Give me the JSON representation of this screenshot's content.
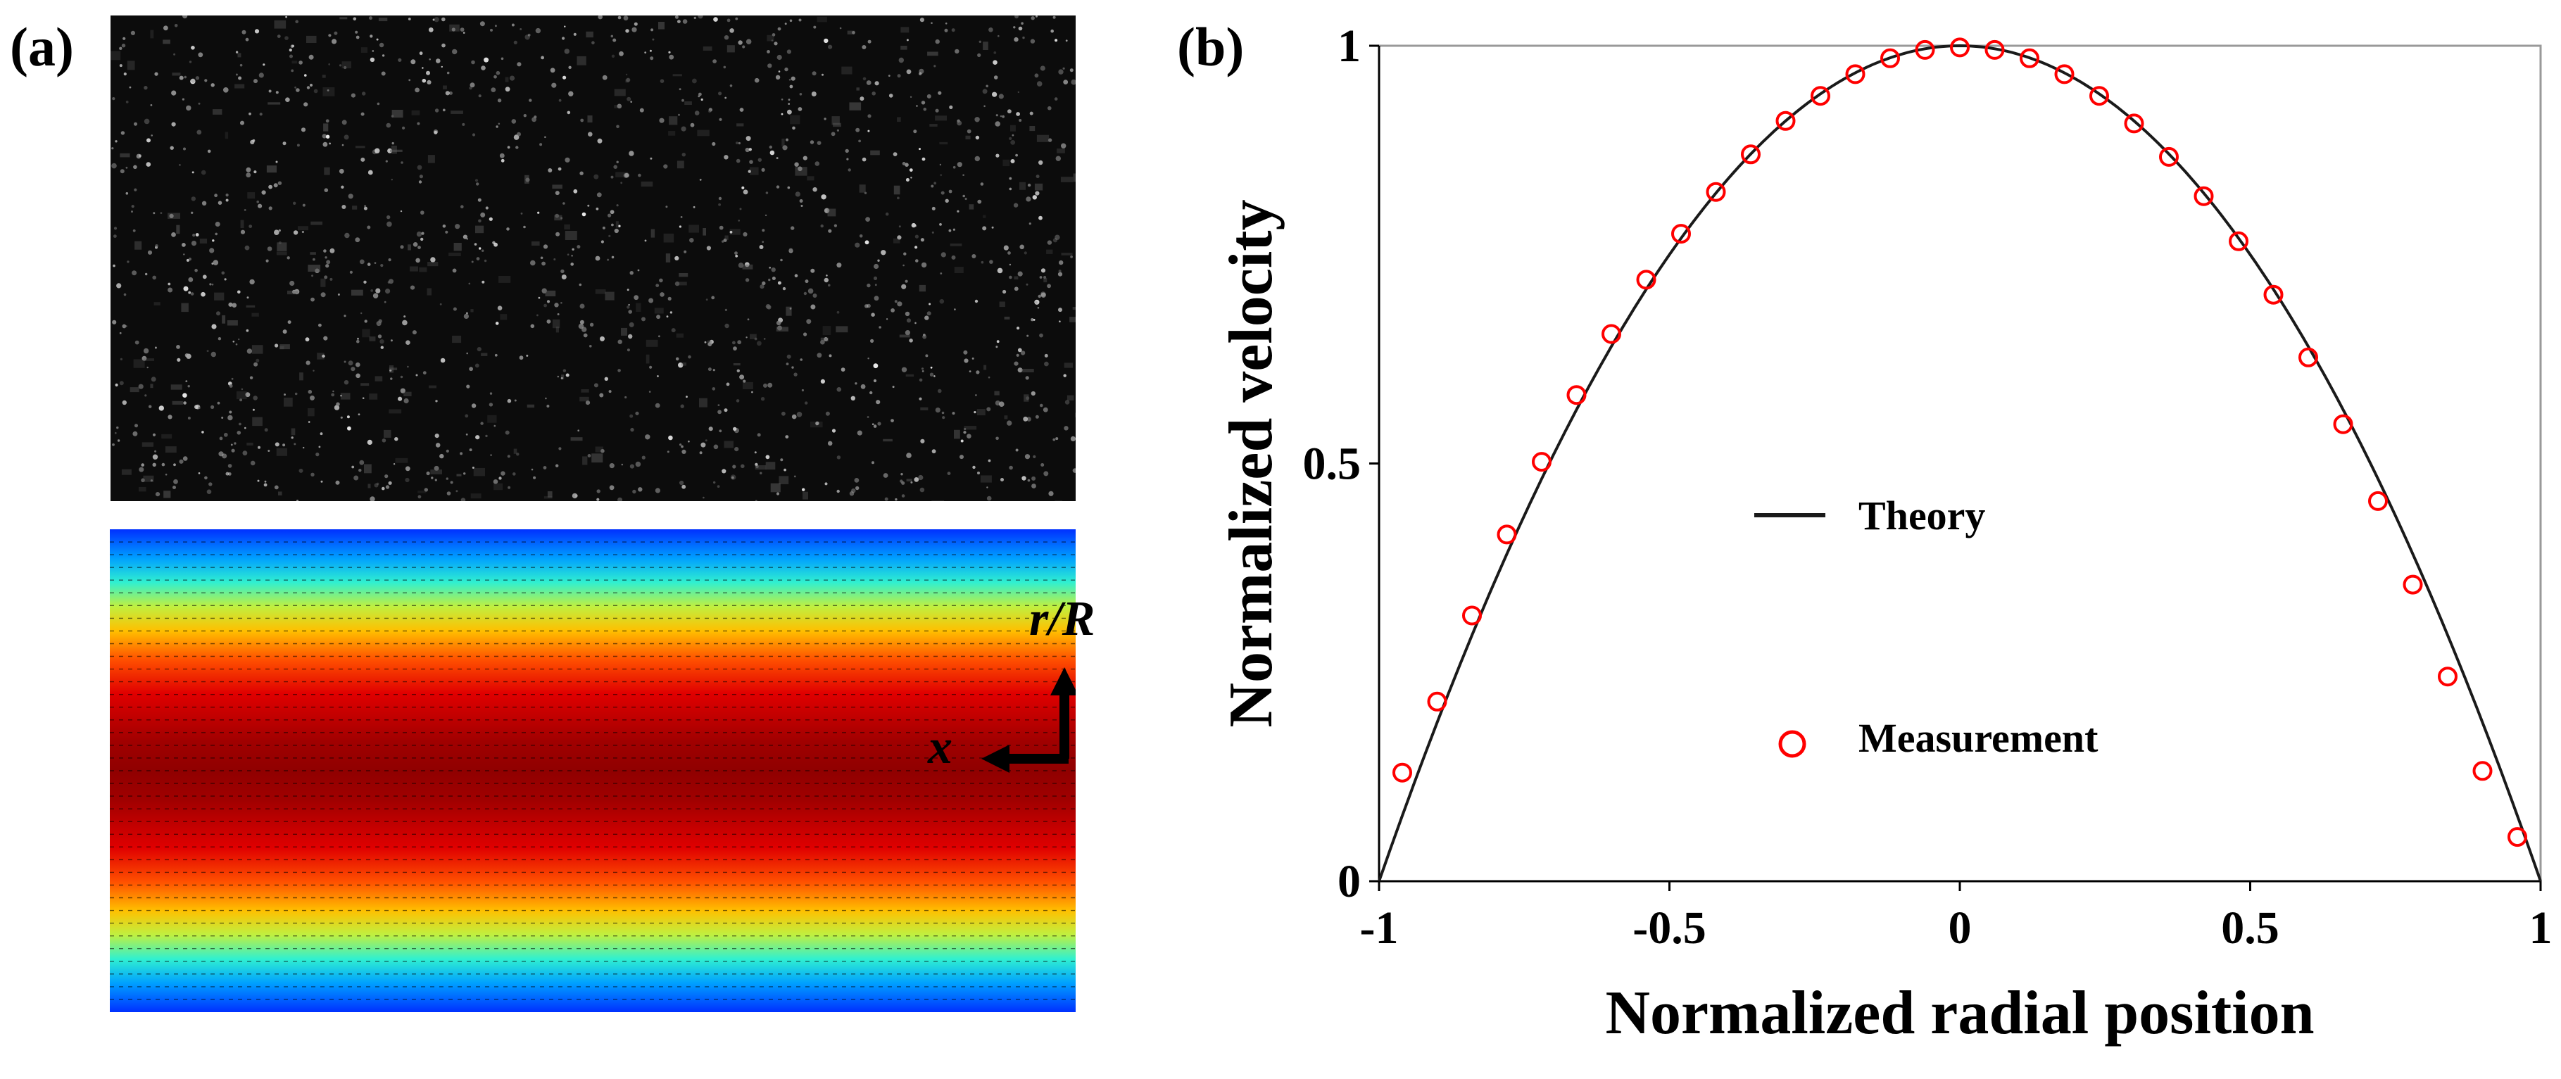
{
  "panel_labels": {
    "a": "(a)",
    "b": "(b)"
  },
  "velocity_field": {
    "coordinate_labels": {
      "radial": "r/R",
      "axial": "x"
    },
    "colormap": [
      "#00008f",
      "#0000ff",
      "#00a0ff",
      "#00ffff",
      "#80ff80",
      "#ffff00",
      "#ff8000",
      "#ff0000",
      "#8f0000"
    ]
  },
  "colors": {
    "theory_line": "#1a1a1a",
    "measurement_marker": "#ff0000",
    "axis": "#000000",
    "frame": "#999999"
  },
  "chart_data": {
    "type": "line",
    "xlabel": "Normalized radial position",
    "ylabel": "Normalized velocity",
    "xlim": [
      -1,
      1
    ],
    "ylim": [
      0,
      1
    ],
    "xticks": [
      -1,
      -0.5,
      0,
      0.5,
      1
    ],
    "xtick_labels": [
      "-1",
      "-0.5",
      "0",
      "0.5",
      "1"
    ],
    "yticks": [
      0,
      0.5,
      1
    ],
    "ytick_labels": [
      "0",
      "0.5",
      "1"
    ],
    "legend_position": "center",
    "series": [
      {
        "name": "Theory",
        "style": "line",
        "function": "1 - x^2"
      },
      {
        "name": "Measurement",
        "style": "open-circle",
        "x": [
          -0.96,
          -0.9,
          -0.84,
          -0.78,
          -0.72,
          -0.66,
          -0.6,
          -0.54,
          -0.48,
          -0.42,
          -0.36,
          -0.3,
          -0.24,
          -0.18,
          -0.12,
          -0.06,
          0.0,
          0.06,
          0.12,
          0.18,
          0.24,
          0.3,
          0.36,
          0.42,
          0.48,
          0.54,
          0.6,
          0.66,
          0.72,
          0.78,
          0.84,
          0.9,
          0.96
        ],
        "y": [
          0.13,
          0.215,
          0.318,
          0.415,
          0.502,
          0.582,
          0.655,
          0.72,
          0.775,
          0.825,
          0.87,
          0.91,
          0.94,
          0.966,
          0.985,
          0.995,
          0.998,
          0.995,
          0.985,
          0.966,
          0.94,
          0.907,
          0.867,
          0.82,
          0.766,
          0.702,
          0.627,
          0.547,
          0.455,
          0.355,
          0.245,
          0.132,
          0.053
        ]
      }
    ]
  }
}
